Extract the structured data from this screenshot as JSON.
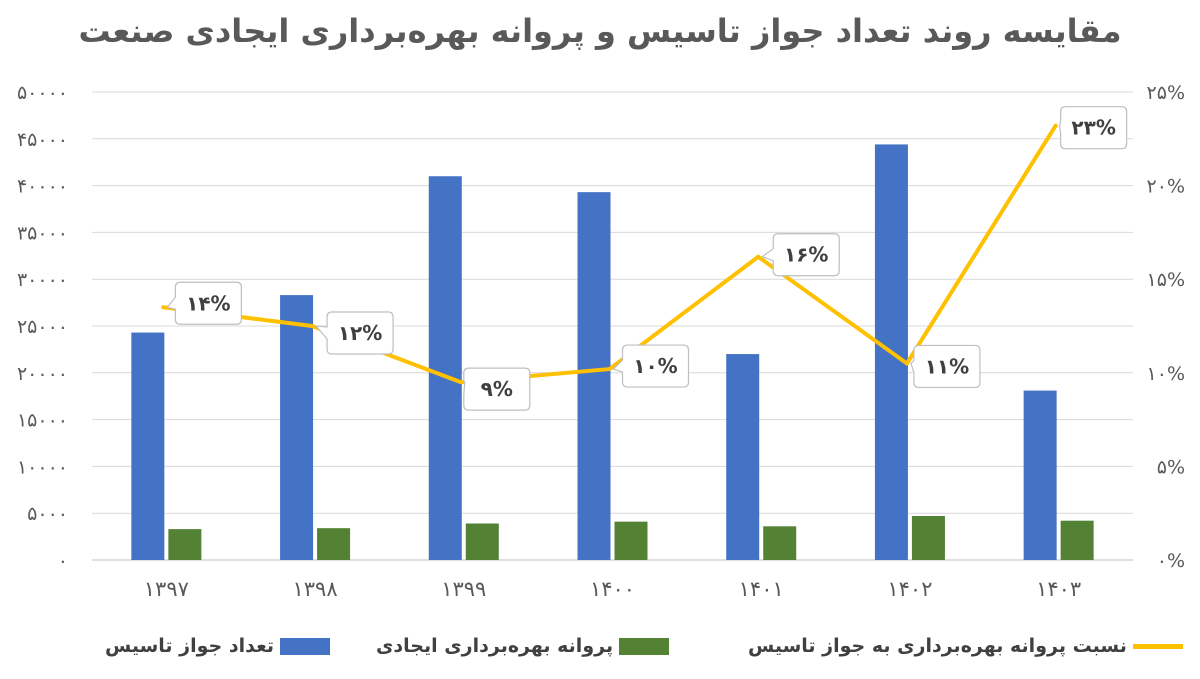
{
  "chart_data": {
    "type": "bar",
    "title": "مقایسه روند تعداد جواز تاسیس و پروانه بهره‌برداری ایجادی صنعت",
    "categories": [
      "۱۳۹۷",
      "۱۳۹۸",
      "۱۳۹۹",
      "۱۴۰۰",
      "۱۴۰۱",
      "۱۴۰۲",
      "۱۴۰۳"
    ],
    "series": [
      {
        "name": "تعداد جواز تاسیس",
        "kind": "bar",
        "axis": "left",
        "color": "#4472C4",
        "values": [
          24300,
          28300,
          41000,
          39300,
          22000,
          44400,
          18100
        ]
      },
      {
        "name": "پروانه بهره‌برداری ایجادی",
        "kind": "bar",
        "axis": "left",
        "color": "#548235",
        "values": [
          3300,
          3400,
          3900,
          4100,
          3600,
          4700,
          4200
        ]
      },
      {
        "name": "نسبت  پروانه بهره‌برداری به جواز تاسیس",
        "kind": "line",
        "axis": "right",
        "color": "#FFC000",
        "values": [
          0.135,
          0.125,
          0.095,
          0.102,
          0.162,
          0.105,
          0.232
        ],
        "labels": [
          "۱۴%",
          "۱۲%",
          "۹%",
          "۱۰%",
          "۱۶%",
          "۱۱%",
          "۲۳%"
        ]
      }
    ],
    "y_left": {
      "min": 0,
      "max": 50000,
      "ticks": [
        "۰",
        "۵۰۰۰",
        "۱۰۰۰۰",
        "۱۵۰۰۰",
        "۲۰۰۰۰",
        "۲۵۰۰۰",
        "۳۰۰۰۰",
        "۳۵۰۰۰",
        "۴۰۰۰۰",
        "۴۵۰۰۰",
        "۵۰۰۰۰"
      ]
    },
    "y_right": {
      "min": 0,
      "max": 0.25,
      "ticks": [
        "۰%",
        "۵%",
        "۱۰%",
        "۱۵%",
        "۲۰%",
        "۲۵%"
      ]
    },
    "grid": true,
    "legend_position": "bottom"
  }
}
